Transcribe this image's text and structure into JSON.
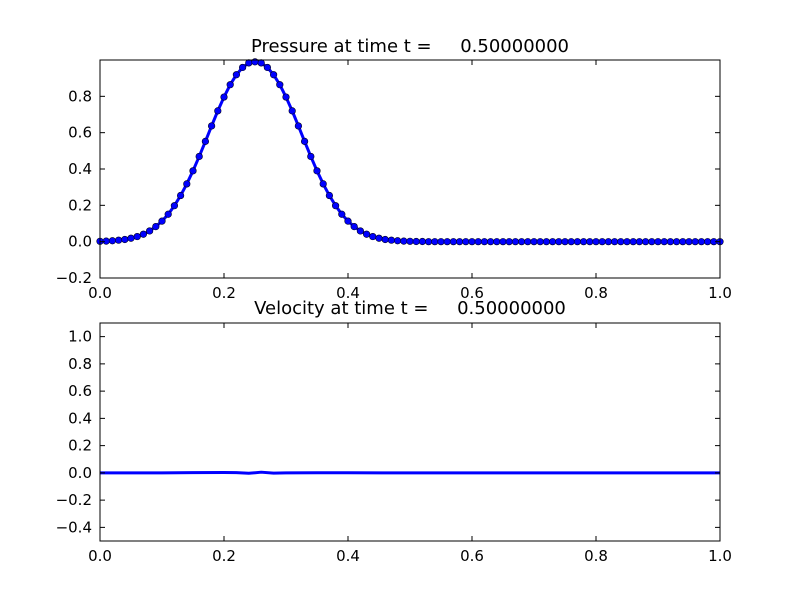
{
  "figure": {
    "background": "#ffffff",
    "line_color": "#0000ff",
    "marker_color": "#0000ff",
    "axes_color": "#000000"
  },
  "chart_data": [
    {
      "type": "line",
      "title": "Pressure at time t =     0.50000000",
      "xlabel": "",
      "ylabel": "",
      "xlim": [
        0.0,
        1.0
      ],
      "ylim": [
        -0.2,
        1.0
      ],
      "x_ticks": [
        "0.0",
        "0.2",
        "0.4",
        "0.6",
        "0.8",
        "1.0"
      ],
      "y_ticks": [
        "−0.2",
        "0.0",
        "0.2",
        "0.4",
        "0.6",
        "0.8"
      ],
      "x_tick_values": [
        0.0,
        0.2,
        0.4,
        0.6,
        0.8,
        1.0
      ],
      "y_tick_values": [
        -0.2,
        0.0,
        0.2,
        0.4,
        0.6,
        0.8
      ],
      "grid": false,
      "markers": true,
      "series": [
        {
          "x": [
            0.0,
            0.01,
            0.02,
            0.03,
            0.04,
            0.05,
            0.06,
            0.07,
            0.08,
            0.09,
            0.1,
            0.11,
            0.12,
            0.13,
            0.14,
            0.15,
            0.16,
            0.17,
            0.18,
            0.19,
            0.2,
            0.21,
            0.22,
            0.23,
            0.24,
            0.25,
            0.26,
            0.27,
            0.28,
            0.29,
            0.3,
            0.31,
            0.32,
            0.33,
            0.34,
            0.35,
            0.36,
            0.37,
            0.38,
            0.39,
            0.4,
            0.41,
            0.42,
            0.43,
            0.44,
            0.45,
            0.46,
            0.47,
            0.48,
            0.49,
            0.5,
            0.51,
            0.52,
            0.53,
            0.54,
            0.55,
            0.56,
            0.57,
            0.58,
            0.59,
            0.6,
            0.61,
            0.62,
            0.63,
            0.64,
            0.65,
            0.66,
            0.67,
            0.68,
            0.69,
            0.7,
            0.71,
            0.72,
            0.73,
            0.74,
            0.75,
            0.76,
            0.77,
            0.78,
            0.79,
            0.8,
            0.81,
            0.82,
            0.83,
            0.84,
            0.85,
            0.86,
            0.87,
            0.88,
            0.89,
            0.9,
            0.91,
            0.92,
            0.93,
            0.94,
            0.95,
            0.96,
            0.97,
            0.98,
            0.99,
            1.0
          ],
          "y": [
            0.002,
            0.003,
            0.005,
            0.008,
            0.012,
            0.019,
            0.028,
            0.041,
            0.059,
            0.083,
            0.113,
            0.151,
            0.198,
            0.254,
            0.318,
            0.39,
            0.469,
            0.552,
            0.637,
            0.72,
            0.796,
            0.864,
            0.919,
            0.959,
            0.984,
            0.99,
            0.984,
            0.959,
            0.919,
            0.864,
            0.796,
            0.72,
            0.637,
            0.552,
            0.469,
            0.39,
            0.318,
            0.254,
            0.198,
            0.151,
            0.113,
            0.083,
            0.059,
            0.041,
            0.028,
            0.019,
            0.012,
            0.008,
            0.005,
            0.003,
            0.002,
            0.001,
            0.001,
            0.0,
            0.0,
            0.0,
            0.0,
            0.0,
            0.0,
            0.0,
            0.0,
            0.0,
            0.0,
            0.0,
            0.0,
            0.0,
            0.0,
            0.0,
            0.0,
            0.0,
            0.0,
            0.0,
            0.0,
            0.0,
            0.0,
            0.0,
            0.0,
            0.0,
            0.0,
            0.0,
            0.0,
            0.0,
            0.0,
            0.0,
            0.0,
            0.0,
            0.0,
            0.0,
            0.0,
            0.0,
            0.0,
            0.0,
            0.0,
            0.0,
            0.0,
            0.0,
            0.0,
            0.0,
            0.0,
            0.0,
            0.0
          ]
        }
      ]
    },
    {
      "type": "line",
      "title": "Velocity at time t =     0.50000000",
      "xlabel": "",
      "ylabel": "",
      "xlim": [
        0.0,
        1.0
      ],
      "ylim": [
        -0.5,
        1.1
      ],
      "x_ticks": [
        "0.0",
        "0.2",
        "0.4",
        "0.6",
        "0.8",
        "1.0"
      ],
      "y_ticks": [
        "−0.4",
        "−0.2",
        "0.0",
        "0.2",
        "0.4",
        "0.6",
        "0.8",
        "1.0"
      ],
      "x_tick_values": [
        0.0,
        0.2,
        0.4,
        0.6,
        0.8,
        1.0
      ],
      "y_tick_values": [
        -0.4,
        -0.2,
        0.0,
        0.2,
        0.4,
        0.6,
        0.8,
        1.0
      ],
      "grid": false,
      "markers": false,
      "series": [
        {
          "x": [
            0.0,
            0.05,
            0.1,
            0.15,
            0.2,
            0.22,
            0.24,
            0.26,
            0.28,
            0.3,
            0.35,
            0.4,
            0.5,
            0.6,
            0.7,
            0.8,
            0.9,
            1.0
          ],
          "y": [
            0.0,
            0.0,
            0.0,
            0.002,
            0.003,
            0.002,
            -0.003,
            0.005,
            -0.002,
            0.0,
            0.001,
            0.001,
            0.0,
            0.0,
            0.0,
            0.0,
            0.0,
            0.0
          ]
        }
      ]
    }
  ]
}
